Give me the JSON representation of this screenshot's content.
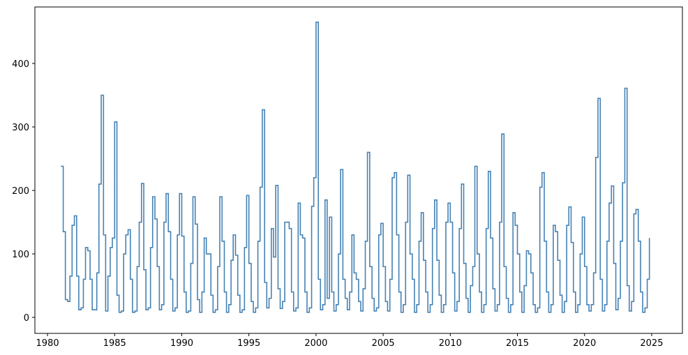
{
  "chart_data": {
    "type": "line",
    "step": "post",
    "color": "#4682b4",
    "xlim": [
      1979.06,
      2027.29
    ],
    "ylim": [
      -25.2,
      489
    ],
    "xticks": [
      1980,
      1985,
      1990,
      1995,
      2000,
      2005,
      2010,
      2015,
      2020,
      2025
    ],
    "yticks": [
      0,
      100,
      200,
      300,
      400
    ],
    "x": [
      1981,
      1981.17,
      1981.33,
      1981.5,
      1981.67,
      1981.83,
      1982,
      1982.17,
      1982.33,
      1982.5,
      1982.67,
      1982.83,
      1983,
      1983.17,
      1983.33,
      1983.5,
      1983.67,
      1983.83,
      1984,
      1984.17,
      1984.33,
      1984.5,
      1984.67,
      1984.83,
      1985,
      1985.17,
      1985.33,
      1985.5,
      1985.67,
      1985.83,
      1986,
      1986.17,
      1986.33,
      1986.5,
      1986.67,
      1986.83,
      1987,
      1987.17,
      1987.33,
      1987.5,
      1987.67,
      1987.83,
      1988,
      1988.17,
      1988.33,
      1988.5,
      1988.67,
      1988.83,
      1989,
      1989.17,
      1989.33,
      1989.5,
      1989.67,
      1989.83,
      1990,
      1990.17,
      1990.33,
      1990.5,
      1990.67,
      1990.83,
      1991,
      1991.17,
      1991.33,
      1991.5,
      1991.67,
      1991.83,
      1992,
      1992.17,
      1992.33,
      1992.5,
      1992.67,
      1992.83,
      1993,
      1993.17,
      1993.33,
      1993.5,
      1993.67,
      1993.83,
      1994,
      1994.17,
      1994.33,
      1994.5,
      1994.67,
      1994.83,
      1995,
      1995.17,
      1995.33,
      1995.5,
      1995.67,
      1995.83,
      1996,
      1996.17,
      1996.33,
      1996.5,
      1996.67,
      1996.83,
      1997,
      1997.17,
      1997.33,
      1997.5,
      1997.67,
      1997.83,
      1998,
      1998.17,
      1998.33,
      1998.5,
      1998.67,
      1998.83,
      1999,
      1999.17,
      1999.33,
      1999.5,
      1999.67,
      1999.83,
      2000,
      2000.17,
      2000.33,
      2000.5,
      2000.67,
      2000.83,
      2001,
      2001.17,
      2001.33,
      2001.5,
      2001.67,
      2001.83,
      2002,
      2002.17,
      2002.33,
      2002.5,
      2002.67,
      2002.83,
      2003,
      2003.17,
      2003.33,
      2003.5,
      2003.67,
      2003.83,
      2004,
      2004.17,
      2004.33,
      2004.5,
      2004.67,
      2004.83,
      2005,
      2005.17,
      2005.33,
      2005.5,
      2005.67,
      2005.83,
      2006,
      2006.17,
      2006.33,
      2006.5,
      2006.67,
      2006.83,
      2007,
      2007.17,
      2007.33,
      2007.5,
      2007.67,
      2007.83,
      2008,
      2008.17,
      2008.33,
      2008.5,
      2008.67,
      2008.83,
      2009,
      2009.17,
      2009.33,
      2009.5,
      2009.67,
      2009.83,
      2010,
      2010.17,
      2010.33,
      2010.5,
      2010.67,
      2010.83,
      2011,
      2011.17,
      2011.33,
      2011.5,
      2011.67,
      2011.83,
      2012,
      2012.17,
      2012.33,
      2012.5,
      2012.67,
      2012.83,
      2013,
      2013.17,
      2013.33,
      2013.5,
      2013.67,
      2013.83,
      2014,
      2014.17,
      2014.33,
      2014.5,
      2014.67,
      2014.83,
      2015,
      2015.17,
      2015.33,
      2015.5,
      2015.67,
      2015.83,
      2016,
      2016.17,
      2016.33,
      2016.5,
      2016.67,
      2016.83,
      2017,
      2017.17,
      2017.33,
      2017.5,
      2017.67,
      2017.83,
      2018,
      2018.17,
      2018.33,
      2018.5,
      2018.67,
      2018.83,
      2019,
      2019.17,
      2019.33,
      2019.5,
      2019.67,
      2019.83,
      2020,
      2020.17,
      2020.33,
      2020.5,
      2020.67,
      2020.83,
      2021,
      2021.17,
      2021.33,
      2021.5,
      2021.67,
      2021.83,
      2022,
      2022.17,
      2022.33,
      2022.5,
      2022.67,
      2022.83,
      2023,
      2023.17,
      2023.33,
      2023.5,
      2023.67,
      2023.83,
      2024,
      2024.17,
      2024.33,
      2024.5,
      2024.67,
      2024.83
    ],
    "values": [
      238,
      135,
      28,
      25,
      65,
      145,
      160,
      65,
      12,
      15,
      60,
      110,
      105,
      60,
      12,
      12,
      70,
      210,
      350,
      130,
      10,
      65,
      110,
      125,
      308,
      35,
      8,
      10,
      100,
      130,
      138,
      60,
      8,
      10,
      80,
      150,
      211,
      75,
      12,
      15,
      110,
      190,
      155,
      80,
      12,
      20,
      150,
      195,
      135,
      60,
      10,
      15,
      130,
      195,
      128,
      40,
      8,
      10,
      85,
      190,
      147,
      28,
      8,
      40,
      125,
      100,
      100,
      35,
      8,
      12,
      80,
      190,
      120,
      40,
      8,
      20,
      90,
      130,
      98,
      35,
      8,
      12,
      110,
      192,
      85,
      25,
      8,
      15,
      120,
      205,
      327,
      55,
      15,
      30,
      140,
      95,
      208,
      45,
      14,
      25,
      150,
      150,
      140,
      40,
      10,
      15,
      180,
      130,
      125,
      40,
      8,
      15,
      175,
      220,
      465,
      60,
      12,
      20,
      185,
      30,
      158,
      40,
      10,
      20,
      100,
      233,
      60,
      30,
      12,
      40,
      130,
      70,
      60,
      25,
      10,
      45,
      120,
      260,
      80,
      30,
      10,
      15,
      130,
      148,
      80,
      25,
      10,
      60,
      220,
      228,
      130,
      40,
      8,
      20,
      150,
      224,
      100,
      60,
      8,
      20,
      120,
      165,
      90,
      40,
      8,
      20,
      140,
      185,
      90,
      35,
      8,
      20,
      150,
      180,
      150,
      70,
      10,
      25,
      140,
      210,
      85,
      30,
      8,
      50,
      80,
      238,
      100,
      40,
      8,
      20,
      140,
      230,
      125,
      45,
      10,
      20,
      150,
      289,
      80,
      30,
      8,
      20,
      165,
      145,
      100,
      40,
      8,
      50,
      105,
      100,
      70,
      20,
      8,
      15,
      205,
      228,
      120,
      40,
      8,
      20,
      145,
      135,
      90,
      35,
      8,
      25,
      145,
      174,
      118,
      40,
      8,
      20,
      100,
      158,
      80,
      20,
      10,
      20,
      70,
      252,
      345,
      60,
      10,
      20,
      120,
      180,
      207,
      85,
      12,
      30,
      120,
      212,
      361,
      50,
      10,
      25,
      163,
      170,
      120,
      40,
      8,
      15,
      60,
      125
    ]
  }
}
